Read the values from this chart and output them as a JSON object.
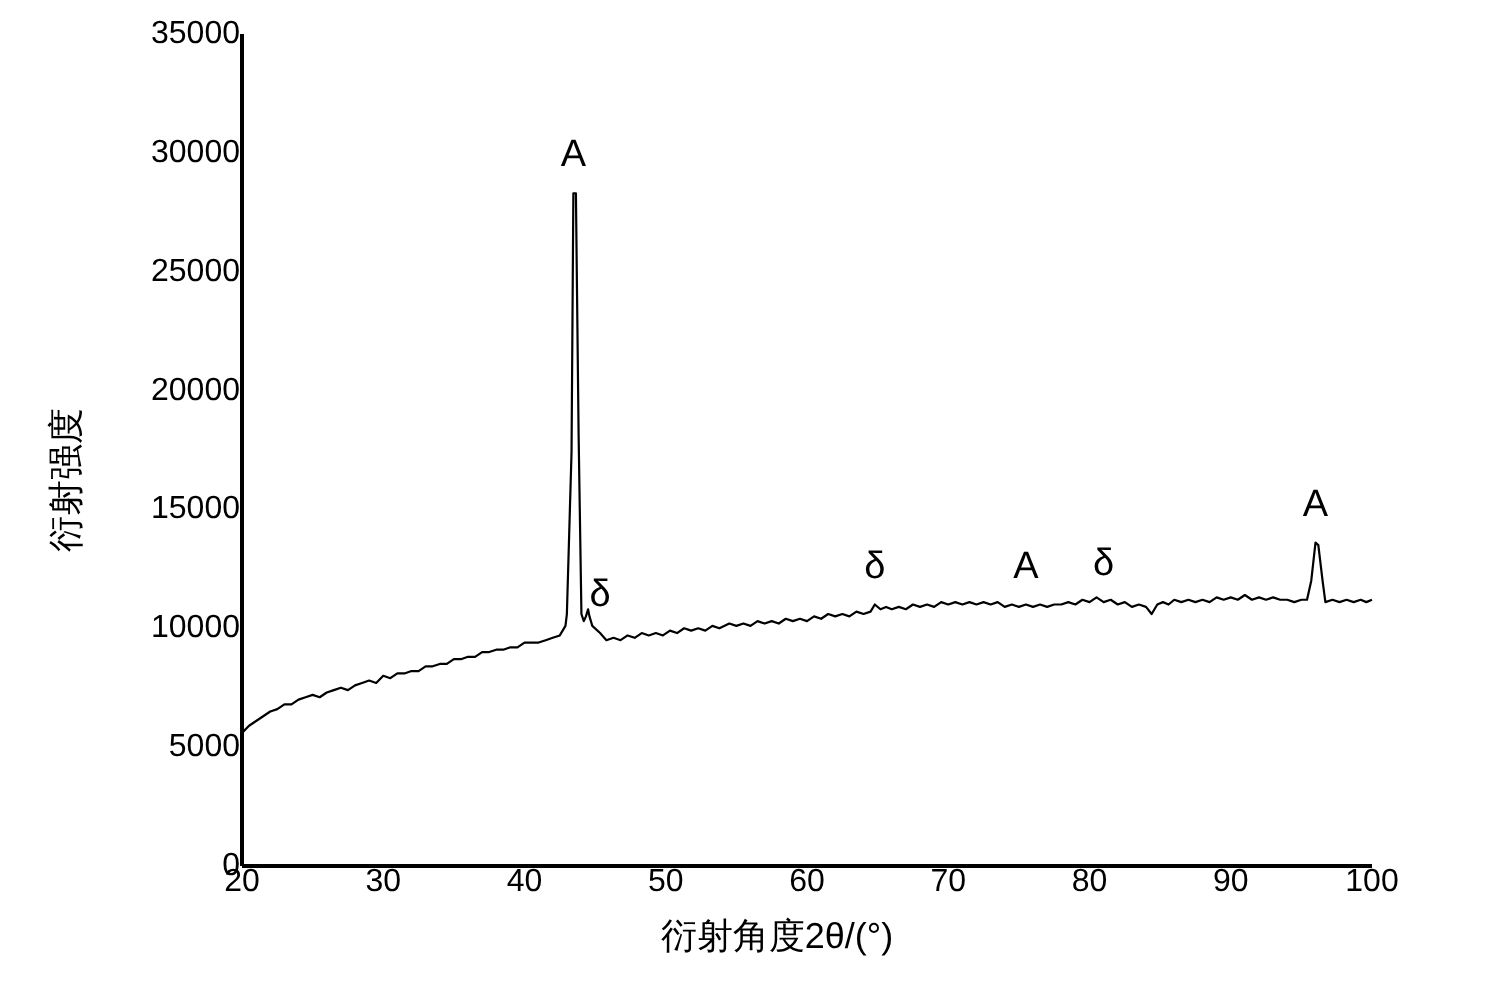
{
  "chart_data": {
    "type": "line",
    "xlabel": "衍射角度2θ/(°)",
    "ylabel": "衍射强度",
    "color": "#000000",
    "line_style": "solid",
    "x": [
      20,
      20.5,
      21,
      21.5,
      22,
      22.5,
      23,
      23.5,
      24,
      24.5,
      25,
      25.5,
      26,
      26.5,
      27,
      27.5,
      28,
      28.5,
      29,
      29.5,
      30,
      30.5,
      31,
      31.5,
      32,
      32.5,
      33,
      33.5,
      34,
      34.5,
      35,
      35.5,
      36,
      36.5,
      37,
      37.5,
      38,
      38.5,
      39,
      39.5,
      40,
      40.5,
      41,
      41.5,
      42,
      42.5,
      42.9,
      43,
      43.33,
      43.46,
      43.64,
      43.83,
      44.03,
      44.2,
      44.35,
      44.5,
      44.6,
      44.8,
      45.35,
      45.8,
      46.3,
      46.8,
      47.3,
      47.8,
      48.3,
      48.8,
      49.3,
      49.8,
      50.3,
      50.8,
      51.3,
      51.8,
      52.3,
      52.8,
      53.3,
      53.8,
      54.5,
      55,
      55.5,
      56,
      56.5,
      57,
      57.5,
      58,
      58.5,
      59,
      59.5,
      60,
      60.5,
      61,
      61.5,
      62,
      62.5,
      63,
      63.5,
      64,
      64.5,
      64.8,
      65.2,
      65.6,
      66,
      66.5,
      67,
      67.5,
      68,
      68.5,
      69,
      69.5,
      70,
      70.5,
      71,
      71.5,
      72,
      72.5,
      73,
      73.5,
      74,
      74.5,
      75,
      75.5,
      76,
      76.5,
      77,
      77.5,
      78,
      78.5,
      79,
      79.5,
      80,
      80.5,
      81,
      81.5,
      82,
      82.5,
      83,
      83.5,
      84,
      84.4,
      84.8,
      85.2,
      85.6,
      86,
      86.5,
      87,
      87.5,
      88,
      88.5,
      89,
      89.5,
      90,
      90.5,
      91,
      91.5,
      92,
      92.5,
      93,
      93.5,
      94,
      94.5,
      95,
      95.4,
      95.7,
      96,
      96.2,
      96.5,
      96.7,
      97.2,
      97.7,
      98.2,
      98.7,
      99.2,
      99.6,
      100
    ],
    "values": [
      5600,
      5900,
      6100,
      6300,
      6500,
      6600,
      6800,
      6800,
      7000,
      7100,
      7200,
      7100,
      7300,
      7400,
      7500,
      7400,
      7600,
      7700,
      7800,
      7700,
      8000,
      7900,
      8100,
      8100,
      8200,
      8200,
      8400,
      8400,
      8500,
      8500,
      8700,
      8700,
      8800,
      8800,
      9000,
      9000,
      9100,
      9100,
      9200,
      9200,
      9400,
      9400,
      9400,
      9500,
      9600,
      9700,
      10100,
      10600,
      17400,
      28300,
      28300,
      18200,
      10600,
      10300,
      10500,
      10800,
      10500,
      10100,
      9800,
      9500,
      9600,
      9500,
      9700,
      9600,
      9800,
      9700,
      9800,
      9700,
      9900,
      9800,
      10000,
      9900,
      10000,
      9900,
      10100,
      10000,
      10200,
      10100,
      10200,
      10100,
      10300,
      10200,
      10300,
      10200,
      10400,
      10300,
      10400,
      10300,
      10500,
      10400,
      10600,
      10500,
      10600,
      10500,
      10700,
      10600,
      10700,
      11000,
      10800,
      10900,
      10800,
      10900,
      10800,
      11000,
      10900,
      11000,
      10900,
      11100,
      11000,
      11100,
      11000,
      11100,
      11000,
      11100,
      11000,
      11100,
      10900,
      11000,
      10900,
      11000,
      10900,
      11000,
      10900,
      11000,
      11000,
      11100,
      11000,
      11200,
      11100,
      11300,
      11100,
      11200,
      11000,
      11100,
      10900,
      11000,
      10900,
      10600,
      11000,
      11100,
      11000,
      11200,
      11100,
      11200,
      11100,
      11200,
      11100,
      11300,
      11200,
      11300,
      11200,
      11400,
      11200,
      11300,
      11200,
      11300,
      11200,
      11200,
      11100,
      11200,
      11200,
      12000,
      13600,
      13500,
      12000,
      11100,
      11200,
      11100,
      11200,
      11100,
      11200,
      11100,
      11200
    ],
    "xlim": [
      20,
      100
    ],
    "ylim": [
      0,
      35000
    ],
    "xticks": [
      20,
      30,
      40,
      50,
      60,
      70,
      80,
      90,
      100
    ],
    "yticks": [
      0,
      5000,
      10000,
      15000,
      20000,
      25000,
      30000,
      35000
    ],
    "annotations": [
      {
        "text": "A",
        "x": 43.46,
        "y": 28300
      },
      {
        "text": "δ",
        "x": 45.35,
        "y": 9800
      },
      {
        "text": "δ",
        "x": 64.8,
        "y": 11000
      },
      {
        "text": "A",
        "x": 75.5,
        "y": 11000
      },
      {
        "text": "δ",
        "x": 81,
        "y": 11100
      },
      {
        "text": "A",
        "x": 96,
        "y": 13600
      }
    ]
  }
}
